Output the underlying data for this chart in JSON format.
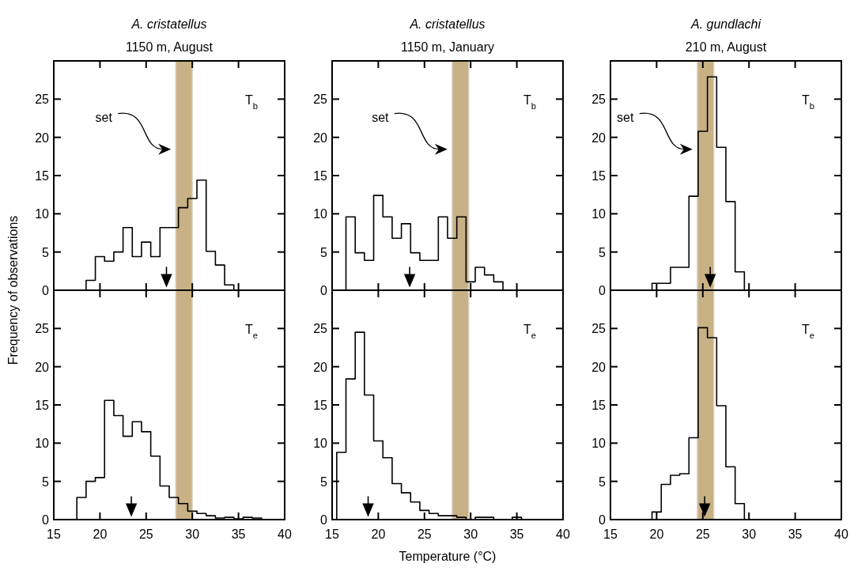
{
  "chart_data": [
    {
      "type": "histogram",
      "title": "A. cristatellus",
      "subtitle": "1150 m, August",
      "bins": [
        18.5,
        19.5,
        20.5,
        21.5,
        22.5,
        23.5,
        24.5,
        25.5,
        26.5,
        27.5,
        28.5,
        29.5,
        30.5,
        31.5,
        32.5,
        33.5,
        34.5
      ],
      "values": [
        1.3,
        4.4,
        3.8,
        5.0,
        8.2,
        4.4,
        6.3,
        4.4,
        8.2,
        8.2,
        10.8,
        12.0,
        14.4,
        5.1,
        3.3,
        0.7
      ],
      "color": "#000000",
      "xlim": [
        15,
        40
      ],
      "xticks": [
        15,
        20,
        25,
        30,
        35,
        40
      ],
      "ylim": [
        0,
        30
      ],
      "yticks": [
        0,
        5,
        10,
        15,
        20,
        25
      ],
      "tick_labels": "y",
      "bands": [
        {
          "axis": "x",
          "from": 28.2,
          "to": 30.0,
          "color": "#c8b185"
        }
      ],
      "series": [
        {
          "type": "scatter",
          "x": [
            27.2
          ],
          "values": [
            1.2
          ],
          "color": "#000000",
          "marker": "triangle"
        }
      ],
      "annotations": [
        "T$_{b}$",
        {
          "text": "set"
        }
      ]
    },
    {
      "type": "histogram",
      "title": "A. cristatellus",
      "subtitle": "1150 m, January",
      "bins": [
        16.5,
        17.5,
        18.5,
        19.5,
        20.5,
        21.5,
        22.5,
        23.5,
        24.5,
        25.5,
        26.5,
        27.5,
        28.5,
        29.5,
        30.5,
        31.5,
        32.5,
        33.5
      ],
      "values": [
        9.6,
        4.9,
        3.9,
        12.4,
        9.6,
        6.8,
        8.7,
        4.9,
        3.9,
        3.9,
        9.6,
        6.8,
        9.6,
        1.1,
        3.0,
        2.0,
        1.1
      ],
      "color": "#000000",
      "xlim": [
        15,
        40
      ],
      "xticks": [
        15,
        20,
        25,
        30,
        35,
        40
      ],
      "ylim": [
        0,
        30
      ],
      "yticks": [
        0,
        5,
        10,
        15,
        20,
        25
      ],
      "tick_labels": "y",
      "bands": [
        {
          "axis": "x",
          "from": 28.0,
          "to": 29.8,
          "color": "#c8b185"
        }
      ],
      "series": [
        {
          "type": "scatter",
          "x": [
            23.4
          ],
          "values": [
            1.2
          ],
          "color": "#000000",
          "marker": "triangle"
        }
      ],
      "annotations": [
        "T$_{b}$",
        {
          "text": "set"
        }
      ]
    },
    {
      "type": "histogram",
      "title": "A. gundlachi",
      "subtitle": "210 m, August",
      "bins": [
        19.5,
        20.5,
        21.5,
        22.5,
        23.5,
        24.5,
        25.5,
        26.5,
        27.5,
        28.5,
        29.5
      ],
      "values": [
        0.9,
        0.9,
        3.0,
        3.0,
        12.3,
        20.8,
        27.9,
        18.7,
        11.6,
        2.4
      ],
      "color": "#000000",
      "xlim": [
        15,
        40
      ],
      "xticks": [
        15,
        20,
        25,
        30,
        35,
        40
      ],
      "ylim": [
        0,
        30
      ],
      "yticks": [
        0,
        5,
        10,
        15,
        20,
        25
      ],
      "tick_labels": "y",
      "bands": [
        {
          "axis": "x",
          "from": 24.4,
          "to": 26.2,
          "color": "#c8b185"
        }
      ],
      "series": [
        {
          "type": "scatter",
          "x": [
            25.8
          ],
          "values": [
            1.2
          ],
          "color": "#000000",
          "marker": "triangle"
        }
      ],
      "annotations": [
        "T$_{b}$",
        {
          "text": "set"
        }
      ]
    },
    {
      "type": "histogram",
      "ylabel": "Frequency of observations",
      "bins": [
        17.5,
        18.5,
        19.5,
        20.5,
        21.5,
        22.5,
        23.5,
        24.5,
        25.5,
        26.5,
        27.5,
        28.5,
        29.5,
        30.5,
        31.5,
        32.5,
        33.5,
        34.5,
        35.5,
        36.5,
        37.5
      ],
      "values": [
        2.9,
        5.0,
        5.5,
        15.6,
        13.6,
        10.9,
        12.8,
        11.5,
        8.3,
        4.4,
        2.9,
        2.1,
        1.1,
        0.8,
        0.5,
        0.2,
        0.3,
        0.1,
        0.3,
        0.2
      ],
      "color": "#000000",
      "xlim": [
        15,
        40
      ],
      "xticks": [
        15,
        20,
        25,
        30,
        35,
        40
      ],
      "ylim": [
        0,
        30
      ],
      "yticks": [
        0,
        5,
        10,
        15,
        20,
        25
      ],
      "bands": [
        {
          "axis": "x",
          "from": 28.2,
          "to": 30.0,
          "color": "#c8b185"
        }
      ],
      "series": [
        {
          "type": "scatter",
          "x": [
            23.4
          ],
          "values": [
            1.2
          ],
          "color": "#000000",
          "marker": "triangle"
        }
      ],
      "annotations": [
        "T$_{e}$"
      ]
    },
    {
      "type": "histogram",
      "xlabel": "Temperature (°C)",
      "bins": [
        15.5,
        16.5,
        17.5,
        18.5,
        19.5,
        20.5,
        21.5,
        22.5,
        23.5,
        24.5,
        25.5,
        26.5,
        27.5,
        28.5,
        29.5,
        30.5,
        31.5,
        32.5,
        33.5,
        34.5,
        35.5
      ],
      "values": [
        8.8,
        18.4,
        24.5,
        16.3,
        10.3,
        8.1,
        4.7,
        3.5,
        2.3,
        1.2,
        0.8,
        0.5,
        0.5,
        0.3,
        0,
        0.3,
        0.3,
        0,
        0,
        0.3
      ],
      "color": "#000000",
      "xlim": [
        15,
        40
      ],
      "xticks": [
        15,
        20,
        25,
        30,
        35,
        40
      ],
      "ylim": [
        0,
        30
      ],
      "yticks": [
        0,
        5,
        10,
        15,
        20,
        25
      ],
      "bands": [
        {
          "axis": "x",
          "from": 28.0,
          "to": 29.8,
          "color": "#c8b185"
        }
      ],
      "series": [
        {
          "type": "scatter",
          "x": [
            18.9
          ],
          "values": [
            1.2
          ],
          "color": "#000000",
          "marker": "triangle"
        }
      ],
      "annotations": [
        "T$_{e}$"
      ]
    },
    {
      "type": "histogram",
      "bins": [
        19.5,
        20.5,
        21.5,
        22.5,
        23.5,
        24.5,
        25.5,
        26.5,
        27.5,
        28.5,
        29.5
      ],
      "values": [
        1.0,
        4.6,
        5.8,
        6.0,
        10.7,
        25.1,
        23.8,
        14.9,
        6.9,
        2.1
      ],
      "color": "#000000",
      "xlim": [
        15,
        40
      ],
      "xticks": [
        15,
        20,
        25,
        30,
        35,
        40
      ],
      "ylim": [
        0,
        30
      ],
      "yticks": [
        0,
        5,
        10,
        15,
        20,
        25
      ],
      "bands": [
        {
          "axis": "x",
          "from": 24.4,
          "to": 26.2,
          "color": "#c8b185"
        }
      ],
      "series": [
        {
          "type": "scatter",
          "x": [
            25.2
          ],
          "values": [
            1.2
          ],
          "color": "#000000",
          "marker": "triangle"
        }
      ],
      "annotations": [
        "T$_{e}$"
      ]
    }
  ]
}
